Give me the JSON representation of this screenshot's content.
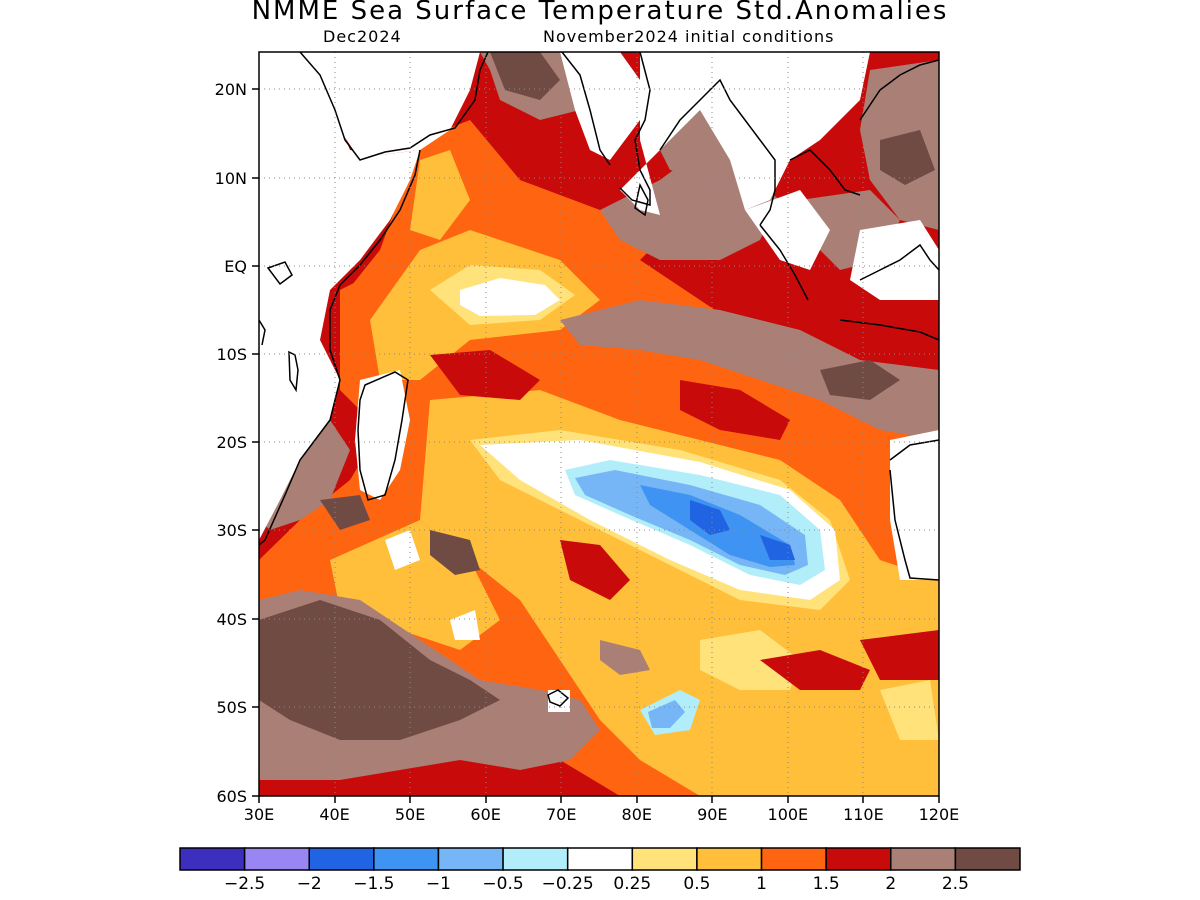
{
  "title": "NMME Sea Surface Temperature Std.Anomalies",
  "valid_month": "Dec2024",
  "init_conditions": "November2024 initial conditions",
  "lat_labels": [
    "20N",
    "10N",
    "EQ",
    "10S",
    "20S",
    "30S",
    "40S",
    "50S",
    "60S"
  ],
  "lon_labels": [
    "30E",
    "40E",
    "50E",
    "60E",
    "70E",
    "80E",
    "90E",
    "100E",
    "110E",
    "120E"
  ],
  "colorbar": {
    "colors": [
      "#3c2fbf",
      "#9a86f2",
      "#2063e3",
      "#3f93f2",
      "#76b6f7",
      "#b2eefa",
      "#ffffff",
      "#ffe27a",
      "#ffbf3a",
      "#ff6410",
      "#c80a0a",
      "#a97f76",
      "#6f4b44"
    ],
    "labels": [
      "−2.5",
      "−2",
      "−1.5",
      "−1",
      "−0.5",
      "−0.25",
      "0.25",
      "0.5",
      "1",
      "1.5",
      "2",
      "2.5"
    ]
  }
}
